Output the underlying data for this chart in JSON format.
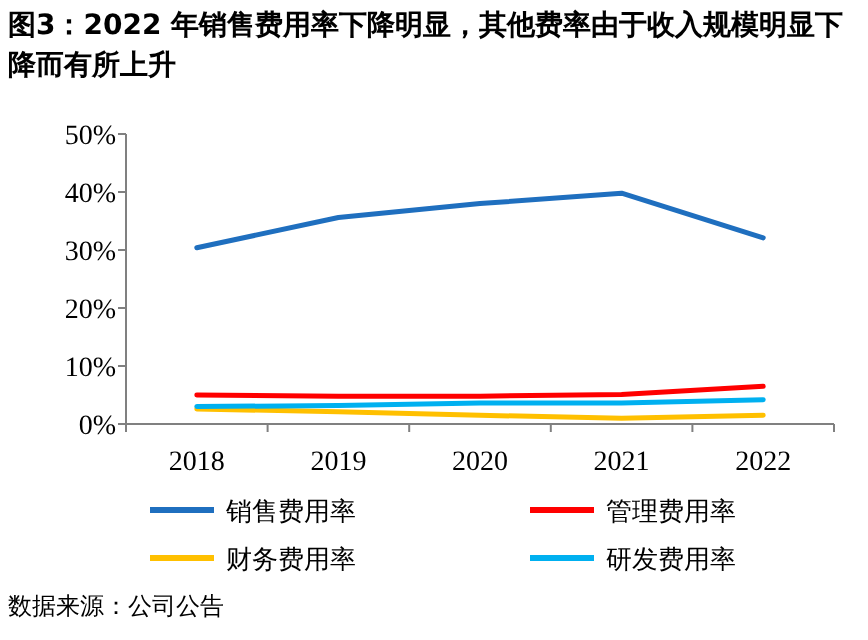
{
  "chart_data": {
    "type": "line",
    "title": "图3：2022 年销售费用率下降明显，其他费率由于收入规模明显下降而有所上升",
    "categories": [
      "2018",
      "2019",
      "2020",
      "2021",
      "2022"
    ],
    "series": [
      {
        "name": "销售费用率",
        "color": "#1f6fbf",
        "values": [
          30.4,
          35.6,
          38.0,
          39.8,
          32.1
        ]
      },
      {
        "name": "管理费用率",
        "color": "#ff0000",
        "values": [
          5.0,
          4.8,
          4.8,
          5.1,
          6.5
        ]
      },
      {
        "name": "财务费用率",
        "color": "#ffc000",
        "values": [
          2.6,
          2.1,
          1.5,
          1.0,
          1.5
        ]
      },
      {
        "name": "研发费用率",
        "color": "#00b0f0",
        "values": [
          3.0,
          3.2,
          3.6,
          3.6,
          4.2
        ]
      }
    ],
    "ylim": [
      0,
      50
    ],
    "yticks": [
      {
        "value": 0,
        "label": "0%"
      },
      {
        "value": 10,
        "label": "10%"
      },
      {
        "value": 20,
        "label": "20%"
      },
      {
        "value": 30,
        "label": "30%"
      },
      {
        "value": 40,
        "label": "40%"
      },
      {
        "value": 50,
        "label": "50%"
      }
    ],
    "legend": "bottom",
    "grid": false,
    "annotations": [
      "数据来源：公司公告"
    ]
  }
}
